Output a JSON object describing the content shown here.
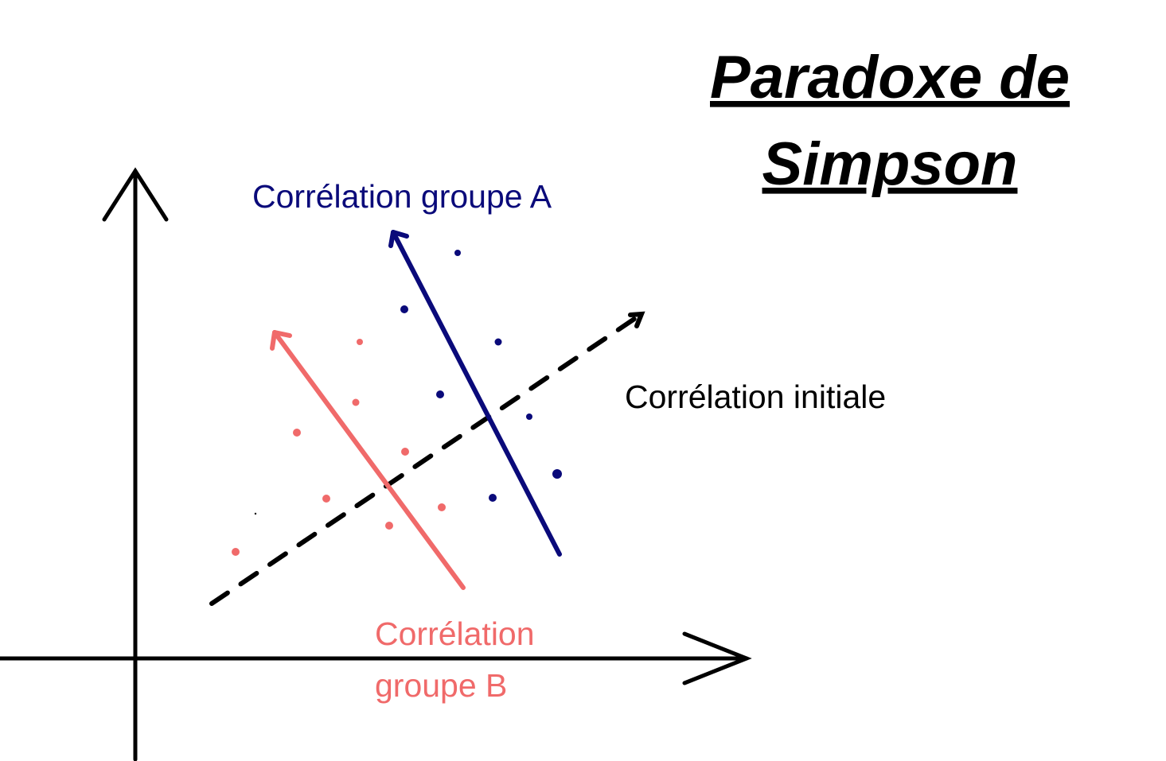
{
  "title": [
    "Paradoxe de",
    "Simpson"
  ],
  "labels": {
    "group_a": "Corrélation groupe A",
    "initial": "Corrélation initiale",
    "group_b": [
      "Corrélation",
      "groupe B"
    ]
  },
  "colors": {
    "group_a": "#0a0a7a",
    "group_b": "#f06a6a",
    "initial": "#000000",
    "axes": "#000000"
  }
}
